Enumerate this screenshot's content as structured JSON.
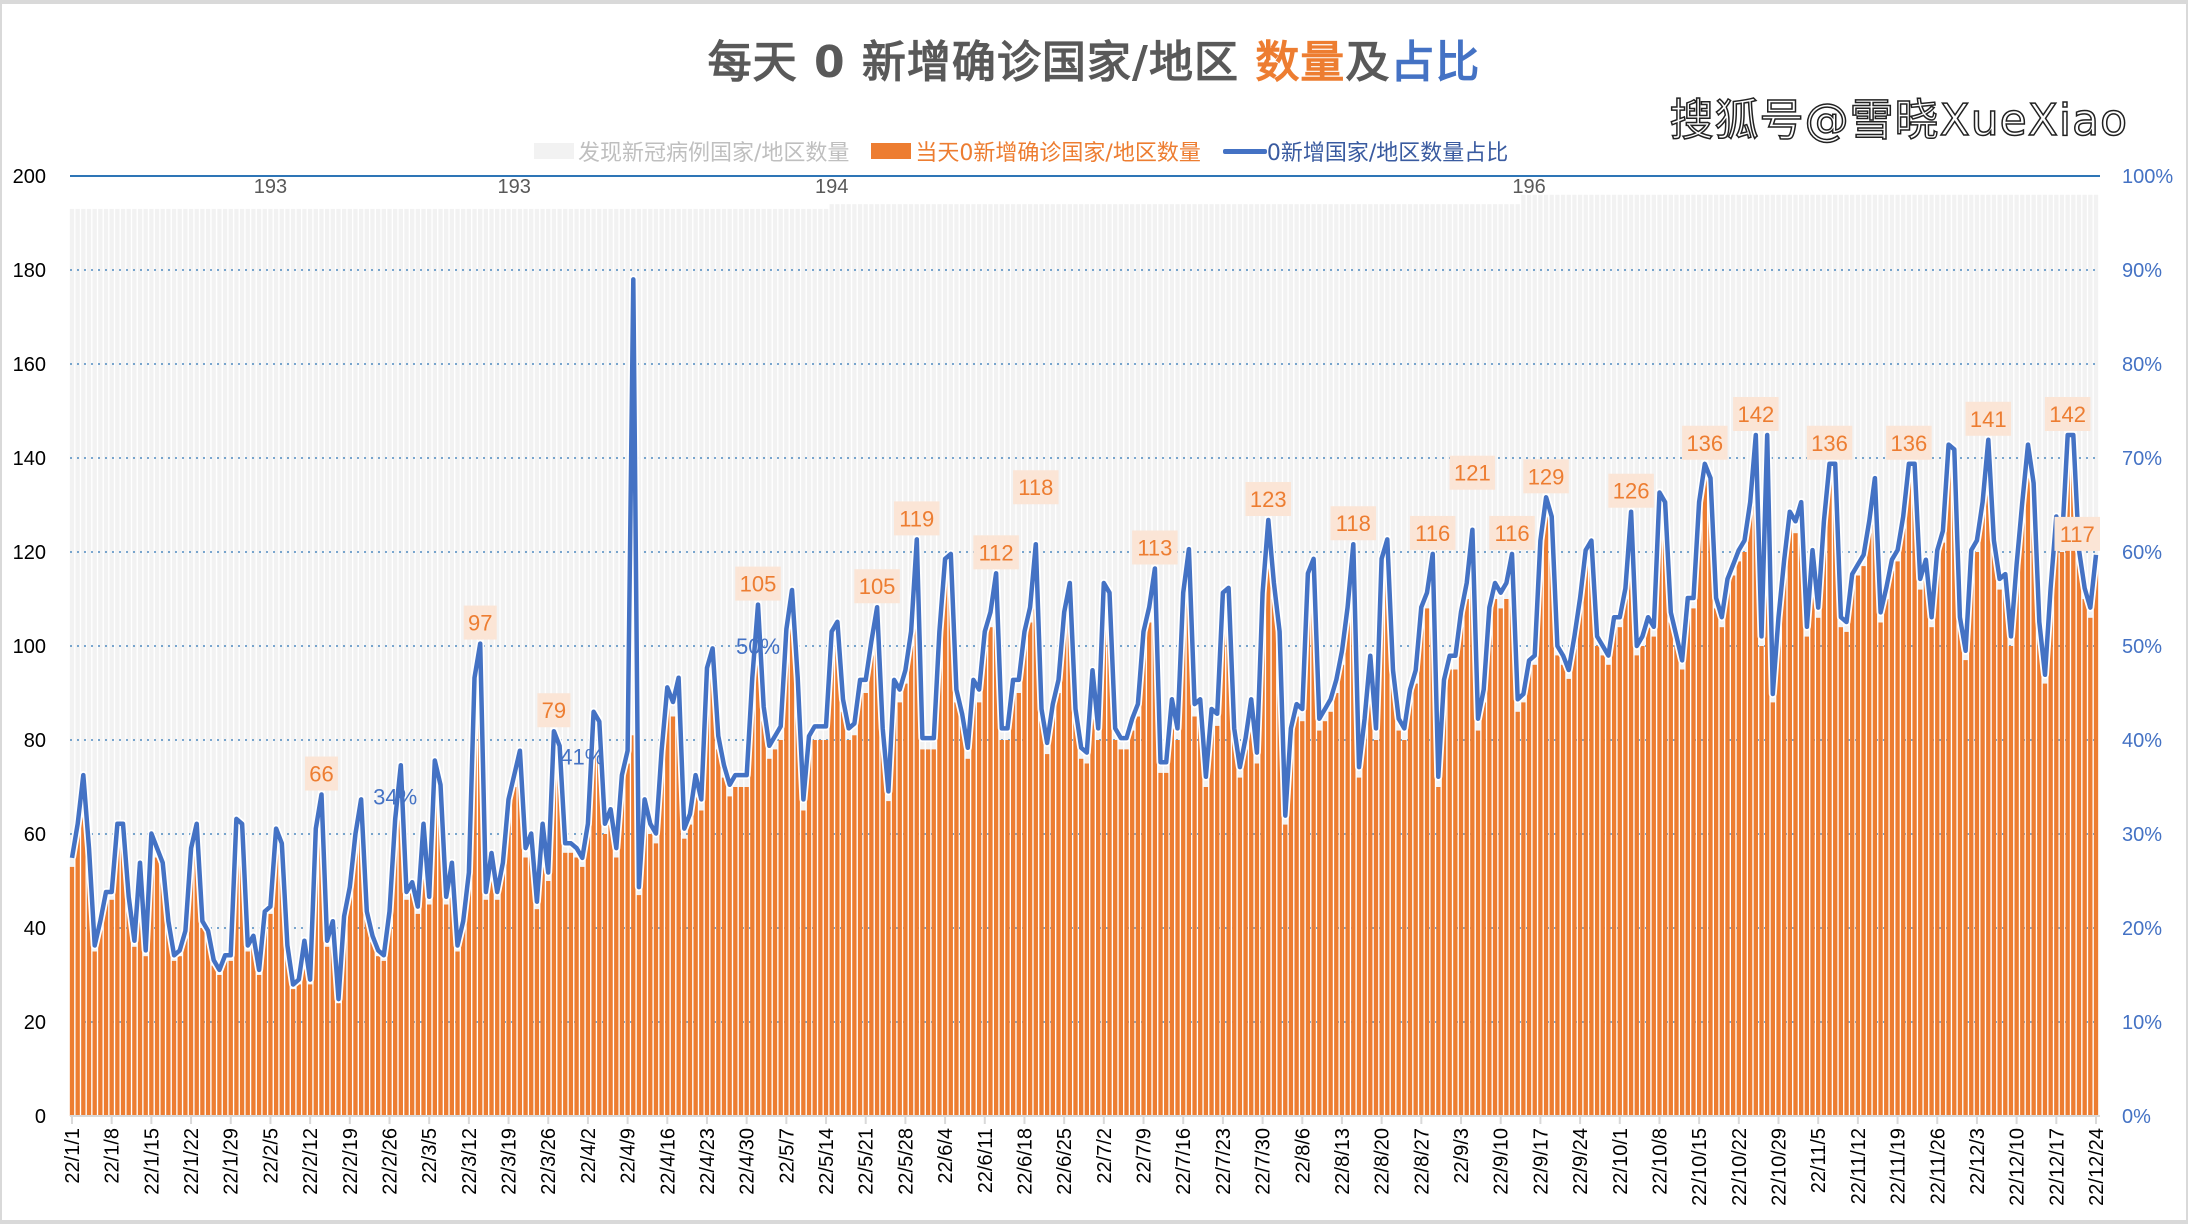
{
  "title": {
    "part1": "每天 0 新增确诊国家/地区 ",
    "part2": "数量",
    "part3": "及",
    "part4": "占比"
  },
  "legend": [
    {
      "label": "发现新冠病例国家/地区数量",
      "color": "#F2F2F2",
      "text_color": "#BFBFBF"
    },
    {
      "label": "当天0新增确诊国家/地区数量",
      "color": "#ED7D31",
      "text_color": "#ED7D31"
    },
    {
      "label": "0新增国家/地区数量占比",
      "color": "#4472C4",
      "text_color": "#3A5BA0"
    }
  ],
  "watermark": "搜狐号@雪晓XueXiao",
  "chart_data": {
    "type": "bar+line",
    "x_start": "22/1/1",
    "x_end": "22/12/24",
    "x_tick_labels": [
      "22/1/1",
      "22/1/8",
      "22/1/15",
      "22/1/22",
      "22/1/29",
      "22/2/5",
      "22/2/12",
      "22/2/19",
      "22/2/26",
      "22/3/5",
      "22/3/12",
      "22/3/19",
      "22/3/26",
      "22/4/2",
      "22/4/9",
      "22/4/16",
      "22/4/23",
      "22/4/30",
      "22/5/7",
      "22/5/14",
      "22/5/21",
      "22/5/28",
      "22/6/4",
      "22/6/11",
      "22/6/18",
      "22/6/25",
      "22/7/2",
      "22/7/9",
      "22/7/16",
      "22/7/23",
      "22/7/30",
      "22/8/6",
      "22/8/13",
      "22/8/20",
      "22/8/27",
      "22/9/3",
      "22/9/10",
      "22/9/17",
      "22/9/24",
      "22/10/1",
      "22/10/8",
      "22/10/15",
      "22/10/22",
      "22/10/29",
      "22/11/5",
      "22/11/12",
      "22/11/19",
      "22/11/26",
      "22/12/3",
      "22/12/10",
      "22/12/17",
      "22/12/24"
    ],
    "y_left": {
      "range": [
        0,
        200
      ],
      "ticks": [
        "0",
        "20",
        "40",
        "60",
        "80",
        "100",
        "120",
        "140",
        "160",
        "180",
        "200"
      ]
    },
    "y_right": {
      "range": [
        0,
        100
      ],
      "ticks": [
        "0%",
        "10%",
        "20%",
        "30%",
        "40%",
        "50%",
        "60%",
        "70%",
        "80%",
        "90%",
        "100%"
      ]
    },
    "grid": true,
    "legend_position": "top",
    "series_total": {
      "name": "发现新冠病例国家/地区数量",
      "segments": [
        {
          "from": "22/1/1",
          "to": "22/5/14",
          "value": 193
        },
        {
          "from": "22/5/15",
          "to": "22/9/13",
          "value": 194
        },
        {
          "from": "22/9/14",
          "to": "22/12/24",
          "value": 196
        }
      ],
      "labels": [
        {
          "date": "22/2/5",
          "text": "193"
        },
        {
          "date": "22/3/20",
          "text": "193"
        },
        {
          "date": "22/5/15",
          "text": "194"
        },
        {
          "date": "22/9/15",
          "text": "196"
        }
      ]
    },
    "series_zero": {
      "name": "当天0新增确诊国家/地区数量",
      "values": [
        53,
        60,
        70,
        55,
        35,
        40,
        46,
        46,
        60,
        60,
        45,
        36,
        52,
        34,
        58,
        55,
        52,
        40,
        33,
        34,
        38,
        55,
        60,
        40,
        38,
        32,
        30,
        33,
        33,
        61,
        60,
        35,
        37,
        30,
        42,
        43,
        59,
        56,
        35,
        27,
        28,
        36,
        28,
        59,
        66,
        36,
        40,
        24,
        41,
        47,
        58,
        65,
        42,
        37,
        34,
        33,
        42,
        61,
        72,
        46,
        48,
        43,
        60,
        45,
        73,
        68,
        45,
        52,
        35,
        40,
        50,
        90,
        97,
        46,
        54,
        46,
        52,
        65,
        70,
        75,
        55,
        58,
        44,
        60,
        50,
        79,
        76,
        56,
        56,
        55,
        53,
        60,
        83,
        81,
        60,
        63,
        55,
        70,
        75,
        81,
        47,
        65,
        60,
        58,
        75,
        88,
        85,
        90,
        59,
        62,
        70,
        65,
        92,
        96,
        78,
        72,
        68,
        70,
        70,
        70,
        90,
        105,
        84,
        76,
        78,
        80,
        100,
        108,
        90,
        65,
        78,
        80,
        80,
        80,
        100,
        102,
        86,
        80,
        81,
        90,
        90,
        98,
        105,
        80,
        67,
        90,
        88,
        92,
        100,
        119,
        78,
        78,
        78,
        100,
        115,
        116,
        88,
        83,
        76,
        90,
        88,
        100,
        104,
        112,
        80,
        80,
        90,
        90,
        100,
        105,
        118,
        84,
        77,
        85,
        90,
        104,
        110,
        84,
        76,
        75,
        92,
        80,
        110,
        108,
        80,
        78,
        78,
        82,
        85,
        100,
        105,
        113,
        73,
        73,
        86,
        80,
        108,
        117,
        85,
        86,
        70,
        84,
        83,
        108,
        109,
        80,
        72,
        78,
        86,
        75,
        108,
        123,
        110,
        100,
        62,
        80,
        85,
        84,
        112,
        115,
        82,
        84,
        86,
        90,
        96,
        105,
        118,
        72,
        82,
        95,
        80,
        115,
        119,
        92,
        82,
        80,
        88,
        92,
        105,
        108,
        116,
        70,
        90,
        95,
        95,
        104,
        110,
        121,
        82,
        88,
        105,
        110,
        108,
        110,
        116,
        86,
        88,
        95,
        96,
        120,
        129,
        125,
        98,
        96,
        93,
        100,
        108,
        118,
        120,
        100,
        98,
        96,
        104,
        104,
        110,
        126,
        98,
        100,
        104,
        102,
        130,
        128,
        105,
        100,
        95,
        108,
        108,
        128,
        136,
        133,
        108,
        104,
        112,
        115,
        118,
        120,
        128,
        142,
        100,
        142,
        88,
        104,
        116,
        126,
        124,
        128,
        102,
        118,
        106,
        124,
        136,
        136,
        104,
        103,
        113,
        115,
        117,
        124,
        133,
        105,
        110,
        116,
        118,
        125,
        136,
        136,
        112,
        116,
        104,
        118,
        122,
        140,
        139,
        104,
        97,
        118,
        120,
        128,
        141,
        120,
        112,
        113,
        100,
        115,
        128,
        140,
        132,
        103,
        92,
        110,
        125,
        120,
        142,
        142,
        118,
        110,
        106,
        117
      ],
      "labels": [
        {
          "date": "22/2/14",
          "text": "66"
        },
        {
          "date": "22/3/14",
          "text": "97"
        },
        {
          "date": "22/3/27",
          "text": "79"
        },
        {
          "date": "22/5/2",
          "text": "105"
        },
        {
          "date": "22/5/23",
          "text": "105"
        },
        {
          "date": "22/5/30",
          "text": "119"
        },
        {
          "date": "22/6/13",
          "text": "112"
        },
        {
          "date": "22/6/20",
          "text": "118"
        },
        {
          "date": "22/7/11",
          "text": "113"
        },
        {
          "date": "22/7/31",
          "text": "123"
        },
        {
          "date": "22/8/15",
          "text": "118"
        },
        {
          "date": "22/8/29",
          "text": "116"
        },
        {
          "date": "22/9/5",
          "text": "121"
        },
        {
          "date": "22/9/12",
          "text": "116"
        },
        {
          "date": "22/9/18",
          "text": "129"
        },
        {
          "date": "22/10/3",
          "text": "126"
        },
        {
          "date": "22/10/16",
          "text": "136"
        },
        {
          "date": "22/10/25",
          "text": "142"
        },
        {
          "date": "22/11/7",
          "text": "136"
        },
        {
          "date": "22/11/21",
          "text": "136"
        },
        {
          "date": "22/12/5",
          "text": "141"
        },
        {
          "date": "22/12/19",
          "text": "142"
        },
        {
          "date": "22/12/24",
          "text": "117"
        }
      ]
    },
    "series_ratio": {
      "name": "0新增国家/地区数量占比",
      "unit": "%",
      "overrides": [
        {
          "date": "22/4/10",
          "pct": 89
        }
      ],
      "labels": [
        {
          "date": "22/2/27",
          "pct": 34,
          "text": "34%"
        },
        {
          "date": "22/4/1",
          "pct": 41,
          "text": "41%"
        },
        {
          "date": "22/5/2",
          "pct": 50,
          "text": "50%"
        }
      ]
    }
  }
}
